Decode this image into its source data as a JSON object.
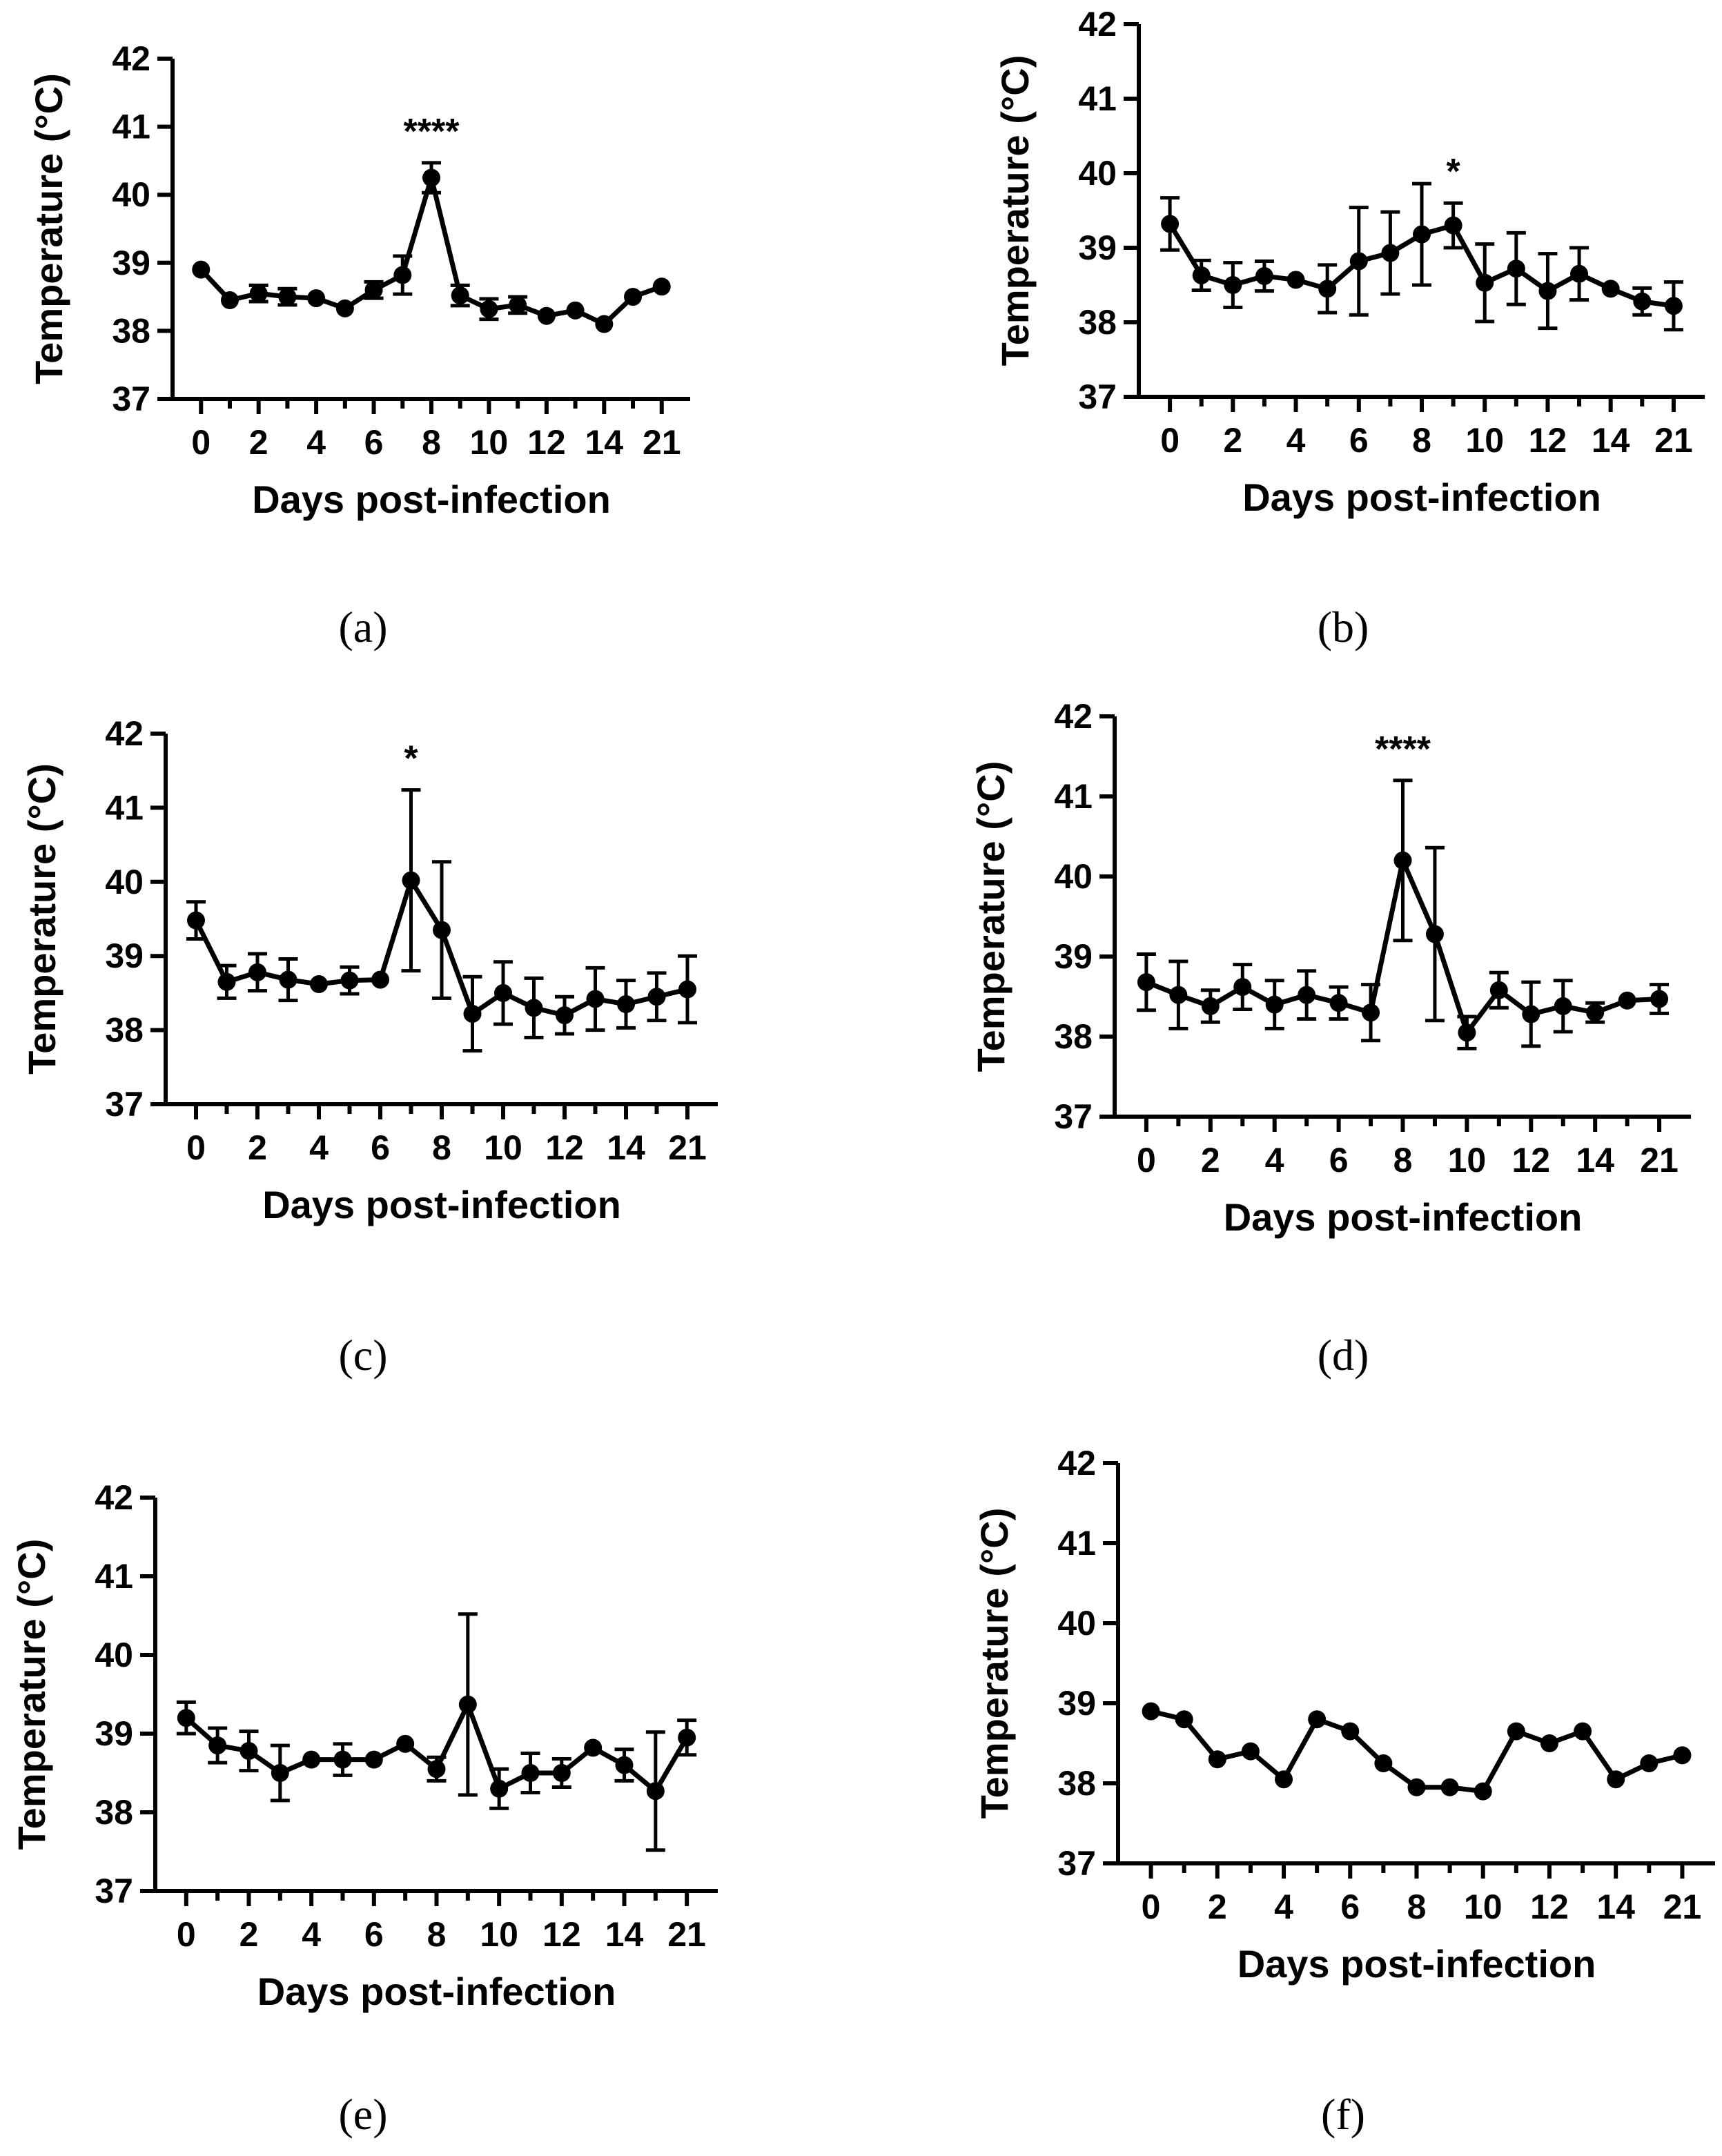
{
  "chart_data": [
    {
      "panel": "(a)",
      "type": "line",
      "xlabel": "Days post-infection",
      "ylabel": "Temperature (°C)",
      "ylim": [
        37,
        42
      ],
      "yticks": [
        "37",
        "38",
        "39",
        "40",
        "41",
        "42"
      ],
      "categories": [
        "0",
        "1",
        "2",
        "3",
        "4",
        "5",
        "6",
        "7",
        "8",
        "9",
        "10",
        "11",
        "12",
        "13",
        "14",
        "15",
        "21"
      ],
      "xtick_labels": [
        "0",
        "2",
        "4",
        "6",
        "8",
        "10",
        "12",
        "14",
        "21"
      ],
      "values": [
        38.9,
        38.45,
        38.55,
        38.5,
        38.48,
        38.33,
        38.6,
        38.82,
        40.25,
        38.52,
        38.32,
        38.38,
        38.22,
        38.3,
        38.1,
        38.5,
        38.65
      ],
      "errors": [
        0,
        0,
        0.12,
        0.12,
        0,
        0,
        0.12,
        0.28,
        0.22,
        0.15,
        0.15,
        0.12,
        0,
        0,
        0,
        0,
        0
      ],
      "annotations": [
        {
          "x": "8",
          "text": "****"
        }
      ],
      "grid": false
    },
    {
      "panel": "(b)",
      "type": "line",
      "xlabel": "Days post-infection",
      "ylabel": "Temperature (°C)",
      "ylim": [
        37,
        42
      ],
      "yticks": [
        "37",
        "38",
        "39",
        "40",
        "41",
        "42"
      ],
      "categories": [
        "0",
        "1",
        "2",
        "3",
        "4",
        "5",
        "6",
        "7",
        "8",
        "9",
        "10",
        "11",
        "12",
        "13",
        "14",
        "15",
        "21"
      ],
      "xtick_labels": [
        "0",
        "2",
        "4",
        "6",
        "8",
        "10",
        "12",
        "14",
        "21"
      ],
      "values": [
        39.32,
        38.63,
        38.5,
        38.62,
        38.57,
        38.45,
        38.82,
        38.93,
        39.18,
        39.3,
        38.53,
        38.72,
        38.42,
        38.65,
        38.45,
        38.28,
        38.22
      ],
      "errors": [
        0.35,
        0.2,
        0.3,
        0.2,
        0,
        0.32,
        0.72,
        0.55,
        0.68,
        0.3,
        0.52,
        0.48,
        0.5,
        0.35,
        0,
        0.18,
        0.32
      ],
      "annotations": [
        {
          "x": "9",
          "text": "*"
        }
      ],
      "grid": false
    },
    {
      "panel": "(c)",
      "type": "line",
      "xlabel": "Days post-infection",
      "ylabel": "Temperature (°C)",
      "ylim": [
        37,
        42
      ],
      "yticks": [
        "37",
        "38",
        "39",
        "40",
        "41",
        "42"
      ],
      "categories": [
        "0",
        "1",
        "2",
        "3",
        "4",
        "5",
        "6",
        "7",
        "8",
        "9",
        "10",
        "11",
        "12",
        "13",
        "14",
        "15",
        "21"
      ],
      "xtick_labels": [
        "0",
        "2",
        "4",
        "6",
        "8",
        "10",
        "12",
        "14",
        "21"
      ],
      "values": [
        39.48,
        38.65,
        38.78,
        38.68,
        38.62,
        38.67,
        38.68,
        40.02,
        39.35,
        38.22,
        38.5,
        38.3,
        38.2,
        38.42,
        38.35,
        38.45,
        38.55
      ],
      "errors": [
        0.25,
        0.22,
        0.25,
        0.28,
        0,
        0.18,
        0,
        1.22,
        0.92,
        0.5,
        0.42,
        0.4,
        0.25,
        0.42,
        0.32,
        0.32,
        0.45
      ],
      "annotations": [
        {
          "x": "7",
          "text": "*"
        }
      ],
      "grid": false
    },
    {
      "panel": "(d)",
      "type": "line",
      "xlabel": "Days post-infection",
      "ylabel": "Temperature (°C)",
      "ylim": [
        37,
        42
      ],
      "yticks": [
        "37",
        "38",
        "39",
        "40",
        "41",
        "42"
      ],
      "categories": [
        "0",
        "1",
        "2",
        "3",
        "4",
        "5",
        "6",
        "7",
        "8",
        "9",
        "10",
        "11",
        "12",
        "13",
        "14",
        "15",
        "21"
      ],
      "xtick_labels": [
        "0",
        "2",
        "4",
        "6",
        "8",
        "10",
        "12",
        "14",
        "21"
      ],
      "values": [
        38.68,
        38.52,
        38.38,
        38.62,
        38.4,
        38.52,
        38.42,
        38.3,
        40.2,
        39.28,
        38.05,
        38.58,
        38.28,
        38.38,
        38.3,
        38.45,
        38.47
      ],
      "errors": [
        0.35,
        0.42,
        0.2,
        0.28,
        0.3,
        0.3,
        0.2,
        0.35,
        1.0,
        1.08,
        0.2,
        0.22,
        0.4,
        0.32,
        0.12,
        0,
        0.18
      ],
      "annotations": [
        {
          "x": "8",
          "text": "****"
        }
      ],
      "grid": false
    },
    {
      "panel": "(e)",
      "type": "line",
      "xlabel": "Days post-infection",
      "ylabel": "Temperature (°C)",
      "ylim": [
        37,
        42
      ],
      "yticks": [
        "37",
        "38",
        "39",
        "40",
        "41",
        "42"
      ],
      "categories": [
        "0",
        "1",
        "2",
        "3",
        "4",
        "5",
        "6",
        "7",
        "8",
        "9",
        "10",
        "11",
        "12",
        "13",
        "14",
        "15",
        "21"
      ],
      "xtick_labels": [
        "0",
        "2",
        "4",
        "6",
        "8",
        "10",
        "12",
        "14",
        "21"
      ],
      "values": [
        39.2,
        38.85,
        38.78,
        38.5,
        38.67,
        38.67,
        38.67,
        38.87,
        38.55,
        39.37,
        38.3,
        38.5,
        38.5,
        38.82,
        38.6,
        38.27,
        38.95
      ],
      "errors": [
        0.2,
        0.22,
        0.25,
        0.35,
        0,
        0.2,
        0,
        0,
        0.15,
        1.15,
        0.25,
        0.25,
        0.18,
        0,
        0.2,
        0.75,
        0.22
      ],
      "annotations": [],
      "grid": false
    },
    {
      "panel": "(f)",
      "type": "line",
      "xlabel": "Days post-infection",
      "ylabel": "Temperature (°C)",
      "ylim": [
        37,
        42
      ],
      "yticks": [
        "37",
        "38",
        "39",
        "40",
        "41",
        "42"
      ],
      "categories": [
        "0",
        "1",
        "2",
        "3",
        "4",
        "5",
        "6",
        "7",
        "8",
        "9",
        "10",
        "11",
        "12",
        "13",
        "14",
        "15",
        "21"
      ],
      "xtick_labels": [
        "0",
        "2",
        "4",
        "6",
        "8",
        "10",
        "12",
        "14",
        "21"
      ],
      "values": [
        38.9,
        38.8,
        38.3,
        38.4,
        38.05,
        38.8,
        38.65,
        38.25,
        37.95,
        37.95,
        37.9,
        38.65,
        38.5,
        38.65,
        38.05,
        38.25,
        38.35
      ],
      "errors": [
        0,
        0,
        0,
        0,
        0,
        0,
        0,
        0,
        0,
        0,
        0,
        0,
        0,
        0,
        0,
        0,
        0
      ],
      "annotations": [],
      "grid": false
    }
  ]
}
